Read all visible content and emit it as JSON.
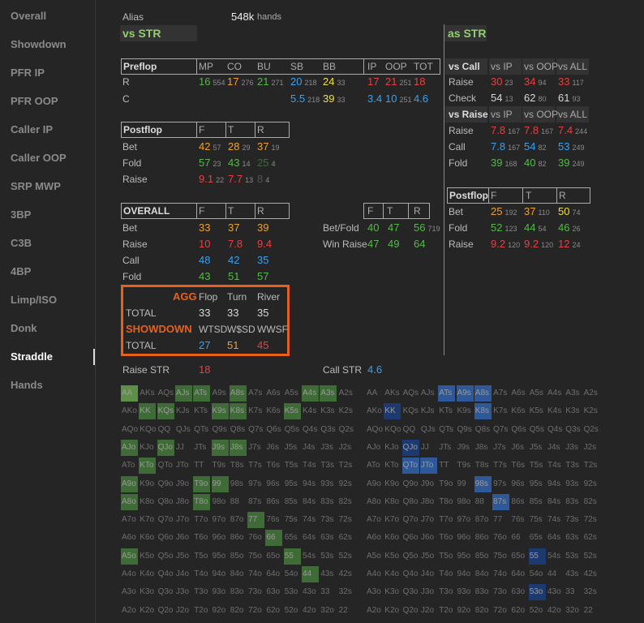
{
  "sidebar": {
    "items": [
      "Overall",
      "Showdown",
      "PFR IP",
      "PFR OOP",
      "Caller IP",
      "Caller OOP",
      "SRP MWP",
      "3BP",
      "C3B",
      "4BP",
      "Limp/ISO",
      "Donk",
      "Straddle",
      "Hands"
    ],
    "active": 12
  },
  "header": {
    "alias": "Alias",
    "hands_count": "548k",
    "hands_label": "hands"
  },
  "palette": {
    "g": "#58b64c",
    "o": "#f0a030",
    "y": "#f0e040",
    "r": "#e84040",
    "b": "#3aa0f0",
    "w": "#d8d8d8",
    "dg": "#3e6a38",
    "dw": "#555555",
    "l": "#5e8f47",
    "m": "#3f6b36",
    "B": "#2f5898",
    "D": "#1d3a70"
  },
  "vs_str": {
    "title": "vs STR",
    "preflop": {
      "headers": [
        "Preflop",
        "MP",
        "CO",
        "BU",
        "SB",
        "BB",
        "IP",
        "OOP",
        "TOT"
      ],
      "rows": [
        {
          "label": "R",
          "cells": [
            {
              "v": "16",
              "n": "554",
              "c": "g"
            },
            {
              "v": "17",
              "n": "276",
              "c": "o"
            },
            {
              "v": "21",
              "n": "271",
              "c": "g"
            },
            {
              "v": "20",
              "n": "218",
              "c": "b"
            },
            {
              "v": "24",
              "n": "33",
              "c": "y"
            },
            {
              "v": "17",
              "c": "r"
            },
            {
              "v": "21",
              "n": "251",
              "c": "r"
            },
            {
              "v": "18",
              "c": "r"
            }
          ]
        },
        {
          "label": "C",
          "cells": [
            null,
            null,
            null,
            {
              "v": "5.5",
              "n": "218",
              "c": "b"
            },
            {
              "v": "39",
              "n": "33",
              "c": "y"
            },
            {
              "v": "3.4",
              "c": "b"
            },
            {
              "v": "10",
              "n": "251",
              "c": "b"
            },
            {
              "v": "4.6",
              "c": "b"
            }
          ]
        }
      ]
    },
    "postflop": {
      "headers": [
        "Postflop",
        "F",
        "T",
        "R"
      ],
      "rows": [
        {
          "label": "Bet",
          "cells": [
            {
              "v": "42",
              "n": "57",
              "c": "o"
            },
            {
              "v": "28",
              "n": "29",
              "c": "o"
            },
            {
              "v": "37",
              "n": "19",
              "c": "o"
            }
          ]
        },
        {
          "label": "Fold",
          "cells": [
            {
              "v": "57",
              "n": "23",
              "c": "g"
            },
            {
              "v": "43",
              "n": "14",
              "c": "g"
            },
            {
              "v": "25",
              "n": "4",
              "c": "dg"
            }
          ]
        },
        {
          "label": "Raise",
          "cells": [
            {
              "v": "9.1",
              "n": "22",
              "c": "r"
            },
            {
              "v": "7.7",
              "n": "13",
              "c": "r"
            },
            {
              "v": "8",
              "n": "4",
              "c": "dw"
            }
          ]
        }
      ]
    },
    "overall": {
      "headers": [
        "OVERALL",
        "F",
        "T",
        "R"
      ],
      "rows": [
        {
          "label": "Bet",
          "cells": [
            {
              "v": "33",
              "c": "o"
            },
            {
              "v": "37",
              "c": "o"
            },
            {
              "v": "39",
              "c": "o"
            }
          ]
        },
        {
          "label": "Raise",
          "cells": [
            {
              "v": "10",
              "c": "r"
            },
            {
              "v": "7.8",
              "c": "r"
            },
            {
              "v": "9.4",
              "c": "r"
            }
          ]
        },
        {
          "label": "Call",
          "cells": [
            {
              "v": "48",
              "c": "b"
            },
            {
              "v": "42",
              "c": "b"
            },
            {
              "v": "35",
              "c": "b"
            }
          ]
        },
        {
          "label": "Fold",
          "cells": [
            {
              "v": "43",
              "c": "g"
            },
            {
              "v": "51",
              "c": "g"
            },
            {
              "v": "57",
              "c": "g"
            }
          ]
        }
      ]
    },
    "betfold": {
      "headers": [
        "F",
        "T",
        "R"
      ],
      "rows": [
        {
          "label": "Bet/Fold",
          "cells": [
            {
              "v": "40",
              "c": "g"
            },
            {
              "v": "47",
              "c": "g"
            },
            {
              "v": "56",
              "n": "719",
              "c": "g"
            }
          ]
        },
        {
          "label": "Win Raise",
          "cells": [
            {
              "v": "47",
              "c": "g"
            },
            {
              "v": "49",
              "c": "g"
            },
            {
              "v": "64",
              "c": "g"
            }
          ]
        }
      ]
    },
    "agg": {
      "headers": [
        "AGG",
        "Flop",
        "Turn",
        "River"
      ],
      "rows": [
        {
          "label": "TOTAL",
          "cells": [
            {
              "v": "33",
              "c": "w"
            },
            {
              "v": "33",
              "c": "w"
            },
            {
              "v": "35",
              "c": "w"
            }
          ]
        }
      ]
    },
    "showdown": {
      "headers": [
        "SHOWDOWN",
        "WTSD",
        "W$SD",
        "WWSF"
      ],
      "rows": [
        {
          "label": "TOTAL",
          "cells": [
            {
              "v": "27",
              "c": "b"
            },
            {
              "v": "51",
              "c": "o"
            },
            {
              "v": "45",
              "c": "r"
            }
          ]
        }
      ]
    },
    "raise_str": {
      "label": "Raise STR",
      "value": "18",
      "c": "r"
    },
    "call_str": {
      "label": "Call STR",
      "value": "4.6",
      "c": "b"
    }
  },
  "as_str": {
    "title": "as STR",
    "vs_call": {
      "headers": [
        "vs Call",
        "vs IP",
        "vs OOP",
        "vs ALL"
      ],
      "rows": [
        {
          "label": "Raise",
          "cells": [
            {
              "v": "30",
              "n": "23",
              "c": "r"
            },
            {
              "v": "34",
              "n": "94",
              "c": "r"
            },
            {
              "v": "33",
              "n": "117",
              "c": "r"
            }
          ]
        },
        {
          "label": "Check",
          "cells": [
            {
              "v": "54",
              "n": "13",
              "c": "w"
            },
            {
              "v": "62",
              "n": "80",
              "c": "w"
            },
            {
              "v": "61",
              "n": "93",
              "c": "w"
            }
          ]
        }
      ]
    },
    "vs_raise": {
      "headers": [
        "vs Raise",
        "vs IP",
        "vs OOP",
        "vs ALL"
      ],
      "rows": [
        {
          "label": "Raise",
          "cells": [
            {
              "v": "7.8",
              "n": "167",
              "c": "r"
            },
            {
              "v": "7.8",
              "n": "167",
              "c": "r"
            },
            {
              "v": "7.4",
              "n": "244",
              "c": "r"
            }
          ]
        },
        {
          "label": "Call",
          "cells": [
            {
              "v": "7.8",
              "n": "167",
              "c": "b"
            },
            {
              "v": "54",
              "n": "82",
              "c": "b"
            },
            {
              "v": "53",
              "n": "249",
              "c": "b"
            }
          ]
        },
        {
          "label": "Fold",
          "cells": [
            {
              "v": "39",
              "n": "168",
              "c": "g"
            },
            {
              "v": "40",
              "n": "82",
              "c": "g"
            },
            {
              "v": "39",
              "n": "249",
              "c": "g"
            }
          ]
        }
      ]
    },
    "postflop": {
      "headers": [
        "Postflop",
        "F",
        "T",
        "R"
      ],
      "rows": [
        {
          "label": "Bet",
          "cells": [
            {
              "v": "25",
              "n": "192",
              "c": "o"
            },
            {
              "v": "37",
              "n": "110",
              "c": "o"
            },
            {
              "v": "50",
              "n": "74",
              "c": "y"
            }
          ]
        },
        {
          "label": "Fold",
          "cells": [
            {
              "v": "52",
              "n": "123",
              "c": "g"
            },
            {
              "v": "44",
              "n": "54",
              "c": "g"
            },
            {
              "v": "46",
              "n": "26",
              "c": "g"
            }
          ]
        },
        {
          "label": "Raise",
          "cells": [
            {
              "v": "9.2",
              "n": "120",
              "c": "r"
            },
            {
              "v": "9.2",
              "n": "120",
              "c": "r"
            },
            {
              "v": "12",
              "n": "24",
              "c": "r"
            }
          ]
        }
      ]
    }
  },
  "hand_grid": {
    "hands": [
      [
        "AA",
        "AKs",
        "AQs",
        "AJs",
        "ATs",
        "A9s",
        "A8s",
        "A7s",
        "A6s",
        "A5s",
        "A4s",
        "A3s",
        "A2s"
      ],
      [
        "AKo",
        "KK",
        "KQs",
        "KJs",
        "KTs",
        "K9s",
        "K8s",
        "K7s",
        "K6s",
        "K5s",
        "K4s",
        "K3s",
        "K2s"
      ],
      [
        "AQo",
        "KQo",
        "QQ",
        "QJs",
        "QTs",
        "Q9s",
        "Q8s",
        "Q7s",
        "Q6s",
        "Q5s",
        "Q4s",
        "Q3s",
        "Q2s"
      ],
      [
        "AJo",
        "KJo",
        "QJo",
        "JJ",
        "JTs",
        "J9s",
        "J8s",
        "J7s",
        "J6s",
        "J5s",
        "J4s",
        "J3s",
        "J2s"
      ],
      [
        "ATo",
        "KTo",
        "QTo",
        "JTo",
        "TT",
        "T9s",
        "T8s",
        "T7s",
        "T6s",
        "T5s",
        "T4s",
        "T3s",
        "T2s"
      ],
      [
        "A9o",
        "K9o",
        "Q9o",
        "J9o",
        "T9o",
        "99",
        "98s",
        "97s",
        "96s",
        "95s",
        "94s",
        "93s",
        "92s"
      ],
      [
        "A8o",
        "K8o",
        "Q8o",
        "J8o",
        "T8o",
        "98o",
        "88",
        "87s",
        "86s",
        "85s",
        "84s",
        "83s",
        "82s"
      ],
      [
        "A7o",
        "K7o",
        "Q7o",
        "J7o",
        "T7o",
        "97o",
        "87o",
        "77",
        "76s",
        "75s",
        "74s",
        "73s",
        "72s"
      ],
      [
        "A6o",
        "K6o",
        "Q6o",
        "J6o",
        "T6o",
        "96o",
        "86o",
        "76o",
        "66",
        "65s",
        "64s",
        "63s",
        "62s"
      ],
      [
        "A5o",
        "K5o",
        "Q5o",
        "J5o",
        "T5o",
        "95o",
        "85o",
        "75o",
        "65o",
        "55",
        "54s",
        "53s",
        "52s"
      ],
      [
        "A4o",
        "K4o",
        "Q4o",
        "J4o",
        "T4o",
        "94o",
        "84o",
        "74o",
        "64o",
        "54o",
        "44",
        "43s",
        "42s"
      ],
      [
        "A3o",
        "K3o",
        "Q3o",
        "J3o",
        "T3o",
        "93o",
        "83o",
        "73o",
        "63o",
        "53o",
        "43o",
        "33",
        "32s"
      ],
      [
        "A2o",
        "K2o",
        "Q2o",
        "J2o",
        "T2o",
        "92o",
        "82o",
        "72o",
        "62o",
        "52o",
        "42o",
        "32o",
        "22"
      ]
    ],
    "left_highlights": [
      [
        0,
        0,
        "l"
      ],
      [
        0,
        3,
        "m"
      ],
      [
        0,
        4,
        "m"
      ],
      [
        0,
        6,
        "m"
      ],
      [
        0,
        10,
        "m"
      ],
      [
        0,
        11,
        "m"
      ],
      [
        1,
        1,
        "m"
      ],
      [
        1,
        2,
        "m"
      ],
      [
        1,
        5,
        "m"
      ],
      [
        1,
        6,
        "m"
      ],
      [
        1,
        9,
        "m"
      ],
      [
        3,
        0,
        "m"
      ],
      [
        3,
        2,
        "m"
      ],
      [
        3,
        5,
        "m"
      ],
      [
        3,
        6,
        "m"
      ],
      [
        4,
        1,
        "m"
      ],
      [
        5,
        0,
        "m"
      ],
      [
        5,
        4,
        "m"
      ],
      [
        5,
        5,
        "m"
      ],
      [
        6,
        0,
        "m"
      ],
      [
        6,
        4,
        "m"
      ],
      [
        7,
        7,
        "m"
      ],
      [
        8,
        8,
        "m"
      ],
      [
        9,
        0,
        "m"
      ],
      [
        9,
        9,
        "m"
      ],
      [
        10,
        10,
        "m"
      ]
    ],
    "right_highlights": [
      [
        0,
        4,
        "B"
      ],
      [
        0,
        5,
        "B"
      ],
      [
        0,
        6,
        "B"
      ],
      [
        1,
        1,
        "D"
      ],
      [
        1,
        6,
        "B"
      ],
      [
        3,
        2,
        "D"
      ],
      [
        4,
        2,
        "B"
      ],
      [
        4,
        3,
        "B"
      ],
      [
        5,
        6,
        "B"
      ],
      [
        6,
        7,
        "B"
      ],
      [
        9,
        9,
        "D"
      ],
      [
        11,
        9,
        "D"
      ]
    ]
  }
}
